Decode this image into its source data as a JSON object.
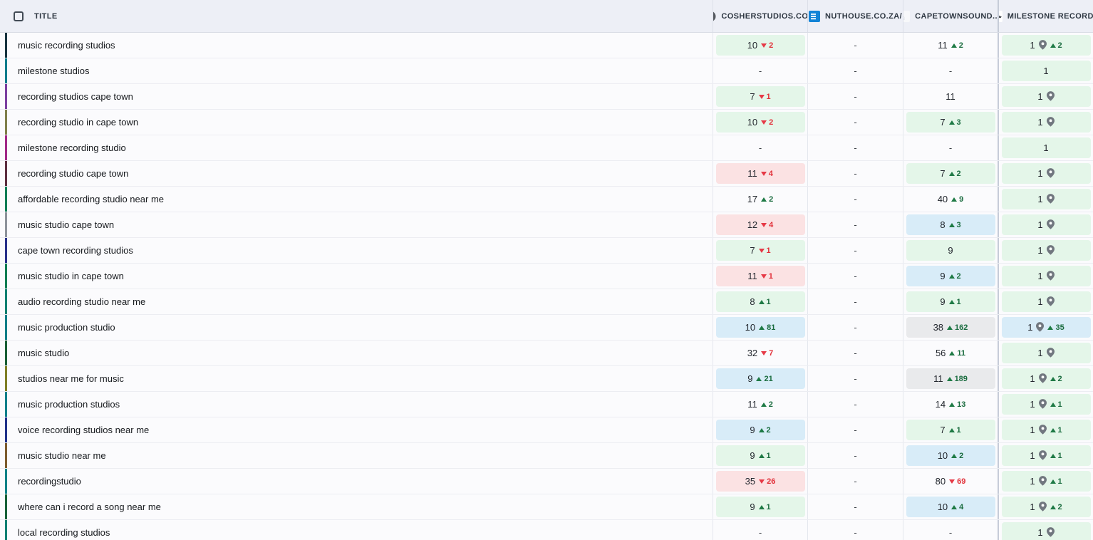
{
  "colors": {
    "header_bg": "#edeff6",
    "badge_green": "#e4f6e9",
    "badge_blue": "#d8ecf8",
    "badge_red": "#fbe2e3",
    "badge_gray": "#e9eaec",
    "up_green": "#1a6c3f",
    "down_red": "#e12f38"
  },
  "header": {
    "title_col": "TITLE",
    "domains": [
      {
        "label": "COSHERSTUDIOS.CO...",
        "favicon": "cosherstudios-favicon"
      },
      {
        "label": "NUTHOUSE.CO.ZA/",
        "favicon": "nuthouse-favicon"
      },
      {
        "label": "CAPETOWNSOUND....",
        "favicon": "capetownsound-favicon"
      },
      {
        "label": "MILESTONE RECORD...",
        "favicon": "milestone-favicon"
      }
    ]
  },
  "rows": [
    {
      "title": "music recording studios",
      "bar": "#17333f",
      "cells": [
        {
          "pos": "10",
          "delta": "2",
          "dir": "down",
          "bg": "green"
        },
        {
          "pos": "-"
        },
        {
          "pos": "11",
          "delta": "2",
          "dir": "up",
          "bg": "none"
        },
        {
          "pos": "1",
          "pin": true,
          "delta": "2",
          "dir": "up",
          "bg": "green"
        }
      ]
    },
    {
      "title": "milestone studios",
      "bar": "#0c7c8c",
      "cells": [
        {
          "pos": "-"
        },
        {
          "pos": "-"
        },
        {
          "pos": "-"
        },
        {
          "pos": "1",
          "bg": "green"
        }
      ]
    },
    {
      "title": "recording studios cape town",
      "bar": "#7b3fa0",
      "cells": [
        {
          "pos": "7",
          "delta": "1",
          "dir": "down",
          "bg": "green"
        },
        {
          "pos": "-"
        },
        {
          "pos": "11",
          "bg": "none"
        },
        {
          "pos": "1",
          "pin": true,
          "bg": "green"
        }
      ]
    },
    {
      "title": "recording studio in cape town",
      "bar": "#7f7f4b",
      "cells": [
        {
          "pos": "10",
          "delta": "2",
          "dir": "down",
          "bg": "green"
        },
        {
          "pos": "-"
        },
        {
          "pos": "7",
          "delta": "3",
          "dir": "up",
          "bg": "green"
        },
        {
          "pos": "1",
          "pin": true,
          "bg": "green"
        }
      ]
    },
    {
      "title": "milestone recording studio",
      "bar": "#a12787",
      "cells": [
        {
          "pos": "-"
        },
        {
          "pos": "-"
        },
        {
          "pos": "-"
        },
        {
          "pos": "1",
          "bg": "green"
        }
      ]
    },
    {
      "title": "recording studio cape town",
      "bar": "#5d2e40",
      "cells": [
        {
          "pos": "11",
          "delta": "4",
          "dir": "down",
          "bg": "red"
        },
        {
          "pos": "-"
        },
        {
          "pos": "7",
          "delta": "2",
          "dir": "up",
          "bg": "green"
        },
        {
          "pos": "1",
          "pin": true,
          "bg": "green"
        }
      ]
    },
    {
      "title": "affordable recording studio near me",
      "bar": "#0e7d55",
      "cells": [
        {
          "pos": "17",
          "delta": "2",
          "dir": "up",
          "bg": "none"
        },
        {
          "pos": "-"
        },
        {
          "pos": "40",
          "delta": "9",
          "dir": "up",
          "bg": "none"
        },
        {
          "pos": "1",
          "pin": true,
          "bg": "green"
        }
      ]
    },
    {
      "title": "music studio cape town",
      "bar": "#8d939b",
      "cells": [
        {
          "pos": "12",
          "delta": "4",
          "dir": "down",
          "bg": "red"
        },
        {
          "pos": "-"
        },
        {
          "pos": "8",
          "delta": "3",
          "dir": "up",
          "bg": "blue"
        },
        {
          "pos": "1",
          "pin": true,
          "bg": "green"
        }
      ]
    },
    {
      "title": "cape town recording studios",
      "bar": "#28308a",
      "cells": [
        {
          "pos": "7",
          "delta": "1",
          "dir": "down",
          "bg": "green"
        },
        {
          "pos": "-"
        },
        {
          "pos": "9",
          "bg": "green"
        },
        {
          "pos": "1",
          "pin": true,
          "bg": "green"
        }
      ]
    },
    {
      "title": "music studio in cape town",
      "bar": "#0e7d52",
      "cells": [
        {
          "pos": "11",
          "delta": "1",
          "dir": "down",
          "bg": "red"
        },
        {
          "pos": "-"
        },
        {
          "pos": "9",
          "delta": "2",
          "dir": "up",
          "bg": "blue"
        },
        {
          "pos": "1",
          "pin": true,
          "bg": "green"
        }
      ]
    },
    {
      "title": "audio recording studio near me",
      "bar": "#0e8071",
      "cells": [
        {
          "pos": "8",
          "delta": "1",
          "dir": "up",
          "bg": "green"
        },
        {
          "pos": "-"
        },
        {
          "pos": "9",
          "delta": "1",
          "dir": "up",
          "bg": "green"
        },
        {
          "pos": "1",
          "pin": true,
          "bg": "green"
        }
      ]
    },
    {
      "title": "music production studio",
      "bar": "#0c7e88",
      "cells": [
        {
          "pos": "10",
          "delta": "81",
          "dir": "up",
          "bg": "blue"
        },
        {
          "pos": "-"
        },
        {
          "pos": "38",
          "delta": "162",
          "dir": "up",
          "bg": "gray"
        },
        {
          "pos": "1",
          "pin": true,
          "delta": "35",
          "dir": "up",
          "bg": "blue"
        }
      ]
    },
    {
      "title": "music studio",
      "bar": "#185e35",
      "cells": [
        {
          "pos": "32",
          "delta": "7",
          "dir": "down",
          "bg": "none"
        },
        {
          "pos": "-"
        },
        {
          "pos": "56",
          "delta": "11",
          "dir": "up",
          "bg": "none"
        },
        {
          "pos": "1",
          "pin": true,
          "bg": "green"
        }
      ]
    },
    {
      "title": "studios near me for music",
      "bar": "#7e7e25",
      "cells": [
        {
          "pos": "9",
          "delta": "21",
          "dir": "up",
          "bg": "blue"
        },
        {
          "pos": "-"
        },
        {
          "pos": "11",
          "delta": "189",
          "dir": "up",
          "bg": "gray"
        },
        {
          "pos": "1",
          "pin": true,
          "delta": "2",
          "dir": "up",
          "bg": "green"
        }
      ]
    },
    {
      "title": "music production studios",
      "bar": "#0c7f8a",
      "cells": [
        {
          "pos": "11",
          "delta": "2",
          "dir": "up",
          "bg": "none"
        },
        {
          "pos": "-"
        },
        {
          "pos": "14",
          "delta": "13",
          "dir": "up",
          "bg": "none"
        },
        {
          "pos": "1",
          "pin": true,
          "delta": "1",
          "dir": "up",
          "bg": "green"
        }
      ]
    },
    {
      "title": "voice recording studios near me",
      "bar": "#203189",
      "cells": [
        {
          "pos": "9",
          "delta": "2",
          "dir": "up",
          "bg": "blue"
        },
        {
          "pos": "-"
        },
        {
          "pos": "7",
          "delta": "1",
          "dir": "up",
          "bg": "green"
        },
        {
          "pos": "1",
          "pin": true,
          "delta": "1",
          "dir": "up",
          "bg": "green"
        }
      ]
    },
    {
      "title": "music studio near me",
      "bar": "#7c5c2e",
      "cells": [
        {
          "pos": "9",
          "delta": "1",
          "dir": "up",
          "bg": "green"
        },
        {
          "pos": "-"
        },
        {
          "pos": "10",
          "delta": "2",
          "dir": "up",
          "bg": "blue"
        },
        {
          "pos": "1",
          "pin": true,
          "delta": "1",
          "dir": "up",
          "bg": "green"
        }
      ]
    },
    {
      "title": "recordingstudio",
      "bar": "#0e8287",
      "cells": [
        {
          "pos": "35",
          "delta": "26",
          "dir": "down",
          "bg": "red"
        },
        {
          "pos": "-"
        },
        {
          "pos": "80",
          "delta": "69",
          "dir": "down",
          "bg": "none"
        },
        {
          "pos": "1",
          "pin": true,
          "delta": "1",
          "dir": "up",
          "bg": "green"
        }
      ]
    },
    {
      "title": "where can i record a song near me",
      "bar": "#176138",
      "cells": [
        {
          "pos": "9",
          "delta": "1",
          "dir": "up",
          "bg": "green"
        },
        {
          "pos": "-"
        },
        {
          "pos": "10",
          "delta": "4",
          "dir": "up",
          "bg": "blue"
        },
        {
          "pos": "1",
          "pin": true,
          "delta": "2",
          "dir": "up",
          "bg": "green"
        }
      ]
    },
    {
      "title": "local recording studios",
      "bar": "#0e8073",
      "cells": [
        {
          "pos": "-"
        },
        {
          "pos": "-"
        },
        {
          "pos": "-"
        },
        {
          "pos": "1",
          "pin": true,
          "bg": "green"
        }
      ]
    }
  ]
}
